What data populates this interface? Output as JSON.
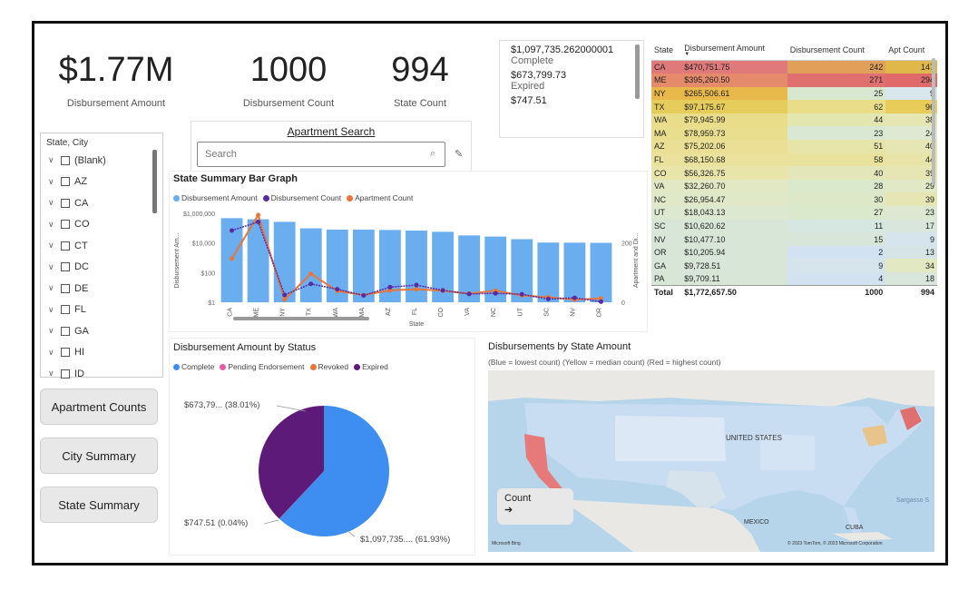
{
  "kpis": [
    {
      "value": "$1.77M",
      "label": "Disbursement Amount"
    },
    {
      "value": "1000",
      "label": "Disbursement Count"
    },
    {
      "value": "994",
      "label": "State Count"
    }
  ],
  "status_card": [
    {
      "value": "$1,097,735.262000001",
      "label": "Complete"
    },
    {
      "value": "$673,799.73",
      "label": "Expired"
    },
    {
      "value": "$747.51",
      "label": ""
    }
  ],
  "state_table": {
    "headers": [
      "State",
      "Disbursement Amount",
      "Disbursement Count",
      "Apt Count"
    ],
    "rows": [
      {
        "state": "CA",
        "amount": "$470,751.75",
        "count": "242",
        "apt": "147",
        "c1": "#e07a7a",
        "c2": "#e0a05a",
        "c3": "#e0b84a"
      },
      {
        "state": "ME",
        "amount": "$395,260.50",
        "count": "271",
        "apt": "294",
        "c1": "#e58a6a",
        "c2": "#e07070",
        "c3": "#e06a6a"
      },
      {
        "state": "NY",
        "amount": "$265,506.61",
        "count": "25",
        "apt": "9",
        "c1": "#e8b84a",
        "c2": "#d8e8d0",
        "c3": "#d8e6ee"
      },
      {
        "state": "TX",
        "amount": "$97,175.67",
        "count": "62",
        "apt": "96",
        "c1": "#e6cc5a",
        "c2": "#eadd8a",
        "c3": "#e8cc5a"
      },
      {
        "state": "WA",
        "amount": "$79,945.99",
        "count": "44",
        "apt": "38",
        "c1": "#e9dc8a",
        "c2": "#e4e6b0",
        "c3": "#e6e6b4"
      },
      {
        "state": "MA",
        "amount": "$78,959.73",
        "count": "23",
        "apt": "24",
        "c1": "#e9dd8e",
        "c2": "#d8e8d2",
        "c3": "#dde9d2"
      },
      {
        "state": "AZ",
        "amount": "$75,202.06",
        "count": "51",
        "apt": "40",
        "c1": "#eadf94",
        "c2": "#e6e4a8",
        "c3": "#e6e6b4"
      },
      {
        "state": "FL",
        "amount": "$68,150.68",
        "count": "58",
        "apt": "44",
        "c1": "#eae19c",
        "c2": "#e8e29c",
        "c3": "#e8e4a8"
      },
      {
        "state": "CO",
        "amount": "$56,326.75",
        "count": "40",
        "apt": "39",
        "c1": "#e8e4aa",
        "c2": "#e2e6b8",
        "c3": "#e6e6b4"
      },
      {
        "state": "VA",
        "amount": "$32,260.70",
        "count": "28",
        "apt": "29",
        "c1": "#e2e8c4",
        "c2": "#dae8cc",
        "c3": "#e0e8c6"
      },
      {
        "state": "NC",
        "amount": "$26,954.47",
        "count": "30",
        "apt": "39",
        "c1": "#e0e8c8",
        "c2": "#dce8c8",
        "c3": "#e6e6b4"
      },
      {
        "state": "UT",
        "amount": "$18,043.13",
        "count": "27",
        "apt": "23",
        "c1": "#dce8d0",
        "c2": "#dae8cc",
        "c3": "#dce8d2"
      },
      {
        "state": "SC",
        "amount": "$10,620.62",
        "count": "11",
        "apt": "17",
        "c1": "#d8e6d8",
        "c2": "#d6e6e0",
        "c3": "#d8e6dc"
      },
      {
        "state": "NV",
        "amount": "$10,477.10",
        "count": "15",
        "apt": "9",
        "c1": "#d8e6d8",
        "c2": "#d8e6da",
        "c3": "#d6e4ee"
      },
      {
        "state": "OR",
        "amount": "$10,205.94",
        "count": "2",
        "apt": "13",
        "c1": "#d8e6d8",
        "c2": "#d2e2f2",
        "c3": "#d6e4e6"
      },
      {
        "state": "GA",
        "amount": "$9,728.51",
        "count": "9",
        "apt": "34",
        "c1": "#d8e6d8",
        "c2": "#d4e4ea",
        "c3": "#e2e8c2"
      },
      {
        "state": "PA",
        "amount": "$9,709.11",
        "count": "4",
        "apt": "18",
        "c1": "#d8e6d8",
        "c2": "#d2e2f0",
        "c3": "#d8e6dc"
      }
    ],
    "total": {
      "label": "Total",
      "amount": "$1,772,657.50",
      "count": "1000",
      "apt": "994"
    }
  },
  "slicer": {
    "title": "State, City",
    "items": [
      "(Blank)",
      "AZ",
      "CA",
      "CO",
      "CT",
      "DC",
      "DE",
      "FL",
      "GA",
      "HI",
      "ID"
    ]
  },
  "nav_buttons": [
    "Apartment Counts",
    "City Summary",
    "State Summary"
  ],
  "search": {
    "title": "Apartment Search",
    "placeholder": "Search"
  },
  "bar_chart_panel": {
    "title": "State Summary Bar Graph",
    "legend": [
      "Disbursement Amount",
      "Disbursement Count",
      "Apartment Count"
    ],
    "y_left_label": "Disbursement Am...",
    "y_right_label": "Apartment and Di...",
    "x_label": "State",
    "y_left_ticks": [
      "$1,000,000",
      "$10,000",
      "$100",
      "$1"
    ],
    "y_right_ticks": [
      "200",
      "0"
    ]
  },
  "chart_data": [
    {
      "type": "bar",
      "title": "State Summary Bar Graph",
      "xlabel": "State",
      "ylabel": "Disbursement Am...",
      "y2label": "Apartment and Di...",
      "yscale": "log",
      "colors": {
        "Disbursement Amount": "#6aaef0",
        "Disbursement Count": "#5a2ba0",
        "Apartment Count": "#e8763a"
      },
      "categories": [
        "CA",
        "ME",
        "NY",
        "TX",
        "WA",
        "MA",
        "AZ",
        "FL",
        "CO",
        "VA",
        "NC",
        "UT",
        "SC",
        "NV",
        "OR"
      ],
      "series": [
        {
          "name": "Disbursement Amount",
          "type": "bar",
          "axis": "left",
          "values": [
            470751.75,
            395260.5,
            265506.61,
            97175.67,
            79945.99,
            78959.73,
            75202.06,
            68150.68,
            56326.75,
            32260.7,
            26954.47,
            18043.13,
            10620.62,
            10477.1,
            10205.94
          ]
        },
        {
          "name": "Disbursement Count",
          "type": "line",
          "axis": "right",
          "values": [
            242,
            271,
            25,
            62,
            44,
            23,
            51,
            58,
            40,
            28,
            30,
            27,
            11,
            15,
            2
          ]
        },
        {
          "name": "Apartment Count",
          "type": "line",
          "axis": "right",
          "values": [
            147,
            294,
            9,
            96,
            38,
            24,
            40,
            44,
            39,
            29,
            39,
            23,
            17,
            9,
            13
          ]
        }
      ]
    },
    {
      "type": "pie",
      "title": "Disbursement Amount by Status",
      "legend": [
        "Complete",
        "Pending Endorsement",
        "Revoked",
        "Expired"
      ],
      "colors": {
        "Complete": "#3d8ef0",
        "Pending Endorsement": "#e85aa8",
        "Revoked": "#e8763a",
        "Expired": "#5e1a78"
      },
      "slices": [
        {
          "label": "Complete",
          "value": 1097735.26,
          "percent": 61.93,
          "display": "$1,097,735.... (61.93%)"
        },
        {
          "label": "Expired",
          "value": 673799.73,
          "percent": 38.01,
          "display": "$673,79... (38.01%)"
        },
        {
          "label": "Revoked",
          "value": 747.51,
          "percent": 0.04,
          "display": "$747.51 (0.04%)"
        }
      ]
    }
  ],
  "pie_panel": {
    "title": "Disbursement Amount by Status",
    "legend": [
      {
        "name": "Complete",
        "color": "#3d8ef0"
      },
      {
        "name": "Pending Endorsement",
        "color": "#e85aa8"
      },
      {
        "name": "Revoked",
        "color": "#e8763a"
      },
      {
        "name": "Expired",
        "color": "#5e1a78"
      }
    ],
    "labels": [
      "$673,79... (38.01%)",
      "$747.51 (0.04%)",
      "$1,097,735.... (61.93%)"
    ]
  },
  "map_panel": {
    "title": "Disbursements by State Amount",
    "subtitle": "(Blue = lowest count) (Yellow = median count) (Red = highest count)",
    "count_card": {
      "label": "Count",
      "arrow": "➔"
    },
    "place_labels": [
      "UNITED STATES",
      "MEXICO",
      "CUBA",
      "Sargasso S"
    ],
    "attribution": "© 2023 TomTom, © 2023 Microsoft Corporation",
    "brand": "Microsoft Bing"
  }
}
